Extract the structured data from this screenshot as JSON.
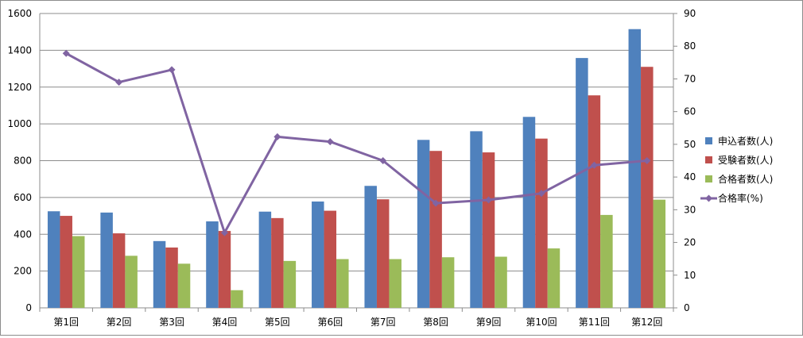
{
  "chart_data": {
    "type": "bar",
    "categories": [
      "第1回",
      "第2回",
      "第3回",
      "第4回",
      "第5回",
      "第6回",
      "第7回",
      "第8回",
      "第9回",
      "第10回",
      "第11回",
      "第12回"
    ],
    "series": [
      {
        "name": "申込者数(人)",
        "type": "bar",
        "axis": "left",
        "color": "#4f81bd",
        "values": [
          525,
          518,
          363,
          470,
          523,
          578,
          663,
          913,
          960,
          1038,
          1358,
          1515
        ]
      },
      {
        "name": "受験者数(人)",
        "type": "bar",
        "axis": "left",
        "color": "#c0504d",
        "values": [
          500,
          405,
          328,
          418,
          488,
          528,
          590,
          853,
          845,
          920,
          1155,
          1310
        ]
      },
      {
        "name": "合格者数(人)",
        "type": "bar",
        "axis": "left",
        "color": "#9bbb59",
        "values": [
          390,
          283,
          240,
          96,
          255,
          265,
          265,
          275,
          278,
          323,
          505,
          588
        ]
      },
      {
        "name": "合格率(%)",
        "type": "line",
        "axis": "right",
        "color": "#8064a2",
        "values": [
          77.8,
          69.0,
          72.8,
          23.0,
          52.3,
          50.8,
          45.0,
          32.0,
          33.0,
          35.0,
          43.6,
          45.0
        ]
      }
    ],
    "ylim_left": [
      0,
      1600
    ],
    "yticks_left": [
      0,
      200,
      400,
      600,
      800,
      1000,
      1200,
      1400,
      1600
    ],
    "ylim_right": [
      0,
      90
    ],
    "yticks_right": [
      0,
      10,
      20,
      30,
      40,
      50,
      60,
      70,
      80,
      90
    ],
    "grid": true,
    "legend_position": "right"
  }
}
